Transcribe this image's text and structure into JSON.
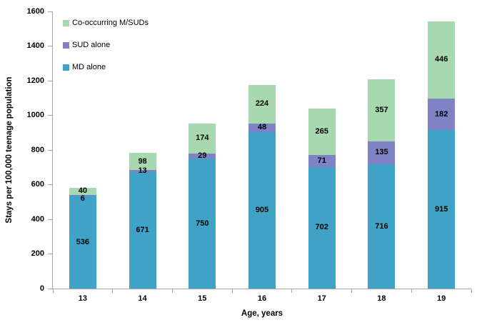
{
  "chart_data": {
    "type": "bar",
    "stacked": true,
    "categories": [
      "13",
      "14",
      "15",
      "16",
      "17",
      "18",
      "19"
    ],
    "series": [
      {
        "name": "MD alone",
        "color": "#41A2C8",
        "values": [
          536,
          671,
          750,
          905,
          702,
          716,
          915
        ]
      },
      {
        "name": "SUD alone",
        "color": "#8082C6",
        "values": [
          6,
          13,
          29,
          48,
          71,
          135,
          182
        ]
      },
      {
        "name": "Co-occurring M/SUDs",
        "color": "#A8D8B0",
        "values": [
          40,
          98,
          174,
          224,
          265,
          357,
          446
        ]
      }
    ],
    "legend": [
      "Co-occurring M/SUDs",
      "SUD alone",
      "MD alone"
    ],
    "legend_position": "inside-top-left",
    "xlabel": "Age, years",
    "ylabel": "Stays per 100,000 teenage population",
    "ylim": [
      0,
      1600
    ],
    "yticks": [
      0,
      200,
      400,
      600,
      800,
      1000,
      1200,
      1400,
      1600
    ],
    "grid": false,
    "bar_value_labels": true,
    "axis_color": "#A6A6A6",
    "text_color": "#000000"
  }
}
